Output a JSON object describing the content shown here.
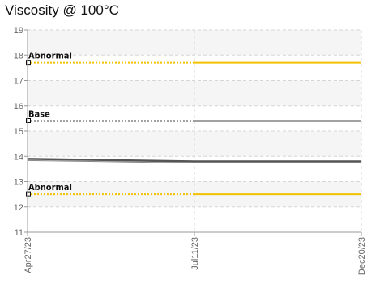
{
  "chart_data": {
    "type": "line",
    "title": "Viscosity @ 100°C",
    "xlabel": "",
    "ylabel": "",
    "ylim": [
      11,
      19
    ],
    "yticks": [
      11,
      12,
      13,
      14,
      15,
      16,
      17,
      18,
      19
    ],
    "ytick_labels": [
      "11",
      "12",
      "13",
      "14",
      "15",
      "16",
      "17",
      "18",
      "19"
    ],
    "x_categories": [
      "Apr27/23",
      "Jul11/23",
      "Dec20/23"
    ],
    "grid": true,
    "reference_lines": [
      {
        "name": "Abnormal",
        "value": 17.7,
        "color": "#f2c100",
        "style": "dotted-then-solid"
      },
      {
        "name": "Base",
        "value": 15.4,
        "color": "#444444",
        "style": "dotted-then-solid"
      },
      {
        "name": "Abnormal",
        "value": 12.5,
        "color": "#f2c100",
        "style": "dotted-then-solid"
      }
    ],
    "series": [
      {
        "values": [
          13.9,
          13.8,
          13.8
        ],
        "color": "#555555"
      }
    ]
  }
}
